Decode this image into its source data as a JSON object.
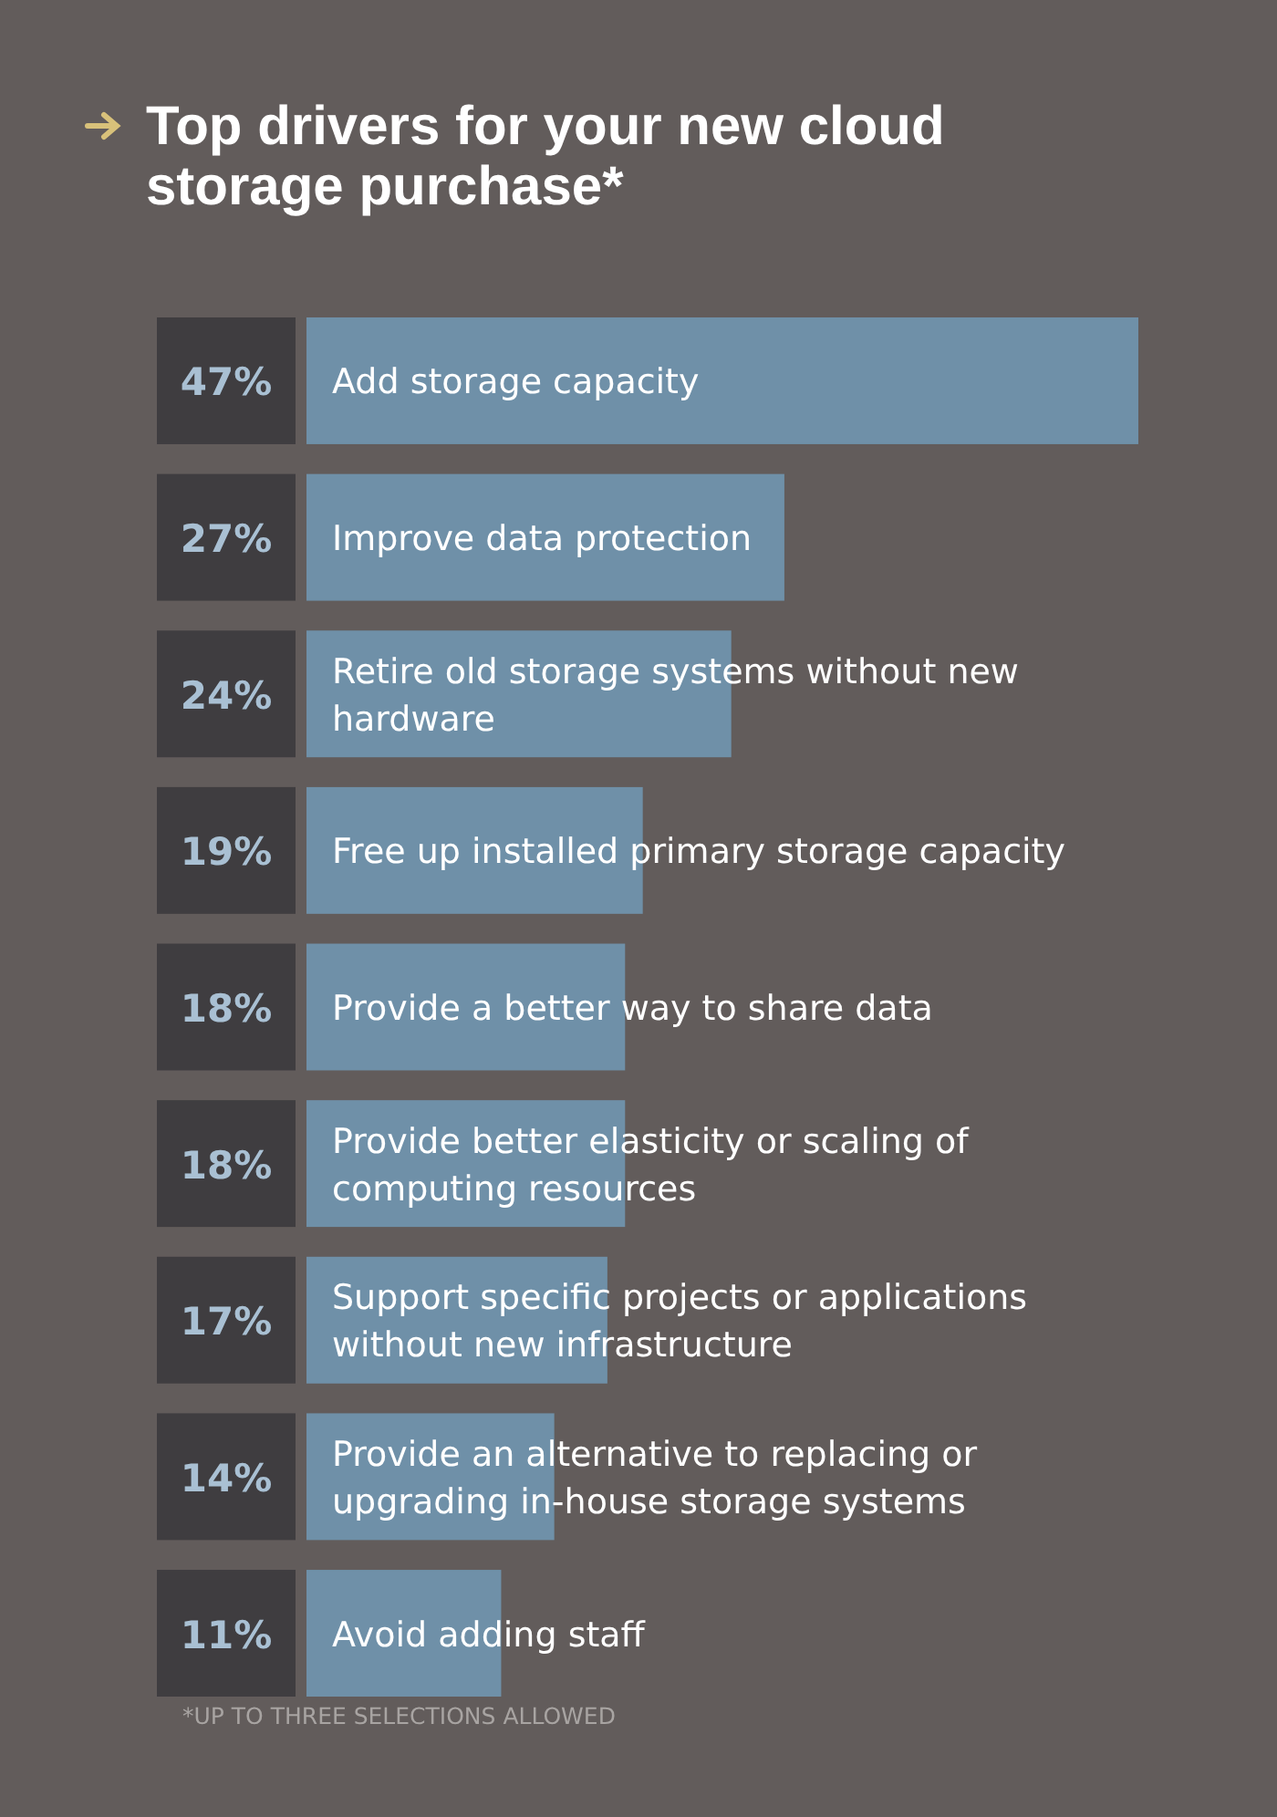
{
  "chart_data": {
    "type": "bar",
    "orientation": "horizontal",
    "title": "Top drivers for your new cloud storage purchase*",
    "categories": [
      "Add storage capacity",
      "Improve data protection",
      "Retire old storage systems without new hardware",
      "Free up installed primary storage capacity",
      "Provide a better way to share data",
      "Provide better elasticity or scaling of computing resources",
      "Support specific projects or applications without new infrastructure",
      "Provide an alternative to replacing or upgrading in-house storage systems",
      "Avoid adding staff"
    ],
    "values": [
      47,
      27,
      24,
      19,
      18,
      18,
      17,
      14,
      11
    ],
    "value_labels": [
      "47%",
      "27%",
      "24%",
      "19%",
      "18%",
      "18%",
      "17%",
      "14%",
      "11%"
    ],
    "color": "#6f90a8",
    "xlim": [
      0,
      47
    ],
    "annotations": [
      "*UP TO THREE SELECTIONS ALLOWED"
    ]
  }
}
